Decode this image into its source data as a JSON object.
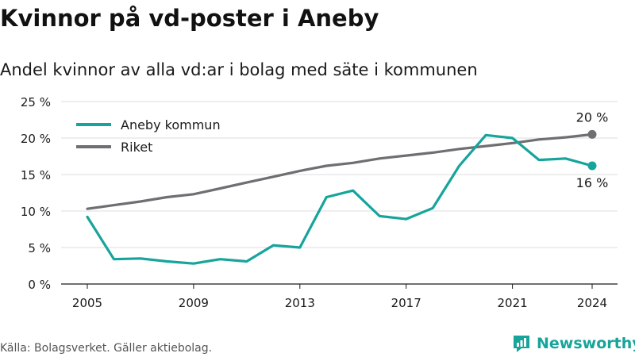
{
  "title": "Kvinnor på vd-poster i Aneby",
  "subtitle": "Andel kvinnor av alla vd:ar i bolag med säte i kommunen",
  "source": "Källa: Bolagsverket. Gäller aktiebolag.",
  "brand": "Newsworthy",
  "colors": {
    "aneby": "#16a49b",
    "riket": "#6e6e73",
    "grid": "#dcdcdc",
    "axis": "#1a1a1a"
  },
  "chart_data": {
    "type": "line",
    "title": "Kvinnor på vd-poster i Aneby",
    "subtitle": "Andel kvinnor av alla vd:ar i bolag med säte i kommunen",
    "xlabel": "",
    "ylabel": "",
    "xlim": [
      2005,
      2024
    ],
    "ylim": [
      0,
      25
    ],
    "x_ticks": [
      2005,
      2009,
      2013,
      2017,
      2021,
      2024
    ],
    "y_ticks": [
      {
        "value": 0,
        "label": "0 %"
      },
      {
        "value": 5,
        "label": "5 %"
      },
      {
        "value": 10,
        "label": "10 %"
      },
      {
        "value": 15,
        "label": "15 %"
      },
      {
        "value": 20,
        "label": "20 %"
      },
      {
        "value": 25,
        "label": "25 %"
      }
    ],
    "grid": true,
    "legend": "top-left",
    "x": [
      2005,
      2006,
      2007,
      2008,
      2009,
      2010,
      2011,
      2012,
      2013,
      2014,
      2015,
      2016,
      2017,
      2018,
      2019,
      2020,
      2021,
      2022,
      2023,
      2024
    ],
    "series": [
      {
        "name": "Aneby kommun",
        "color": "#16a49b",
        "values": [
          9.2,
          3.4,
          3.5,
          3.1,
          2.8,
          3.4,
          3.1,
          5.3,
          5.0,
          11.9,
          12.8,
          9.3,
          8.9,
          10.4,
          16.2,
          20.4,
          20.0,
          17.0,
          17.2,
          16.2
        ],
        "end_label": "16 %"
      },
      {
        "name": "Riket",
        "color": "#6e6e73",
        "values": [
          10.3,
          10.8,
          11.3,
          11.9,
          12.3,
          13.1,
          13.9,
          14.7,
          15.5,
          16.2,
          16.6,
          17.2,
          17.6,
          18.0,
          18.5,
          18.9,
          19.3,
          19.8,
          20.1,
          20.5
        ],
        "end_label": "20 %"
      }
    ]
  }
}
